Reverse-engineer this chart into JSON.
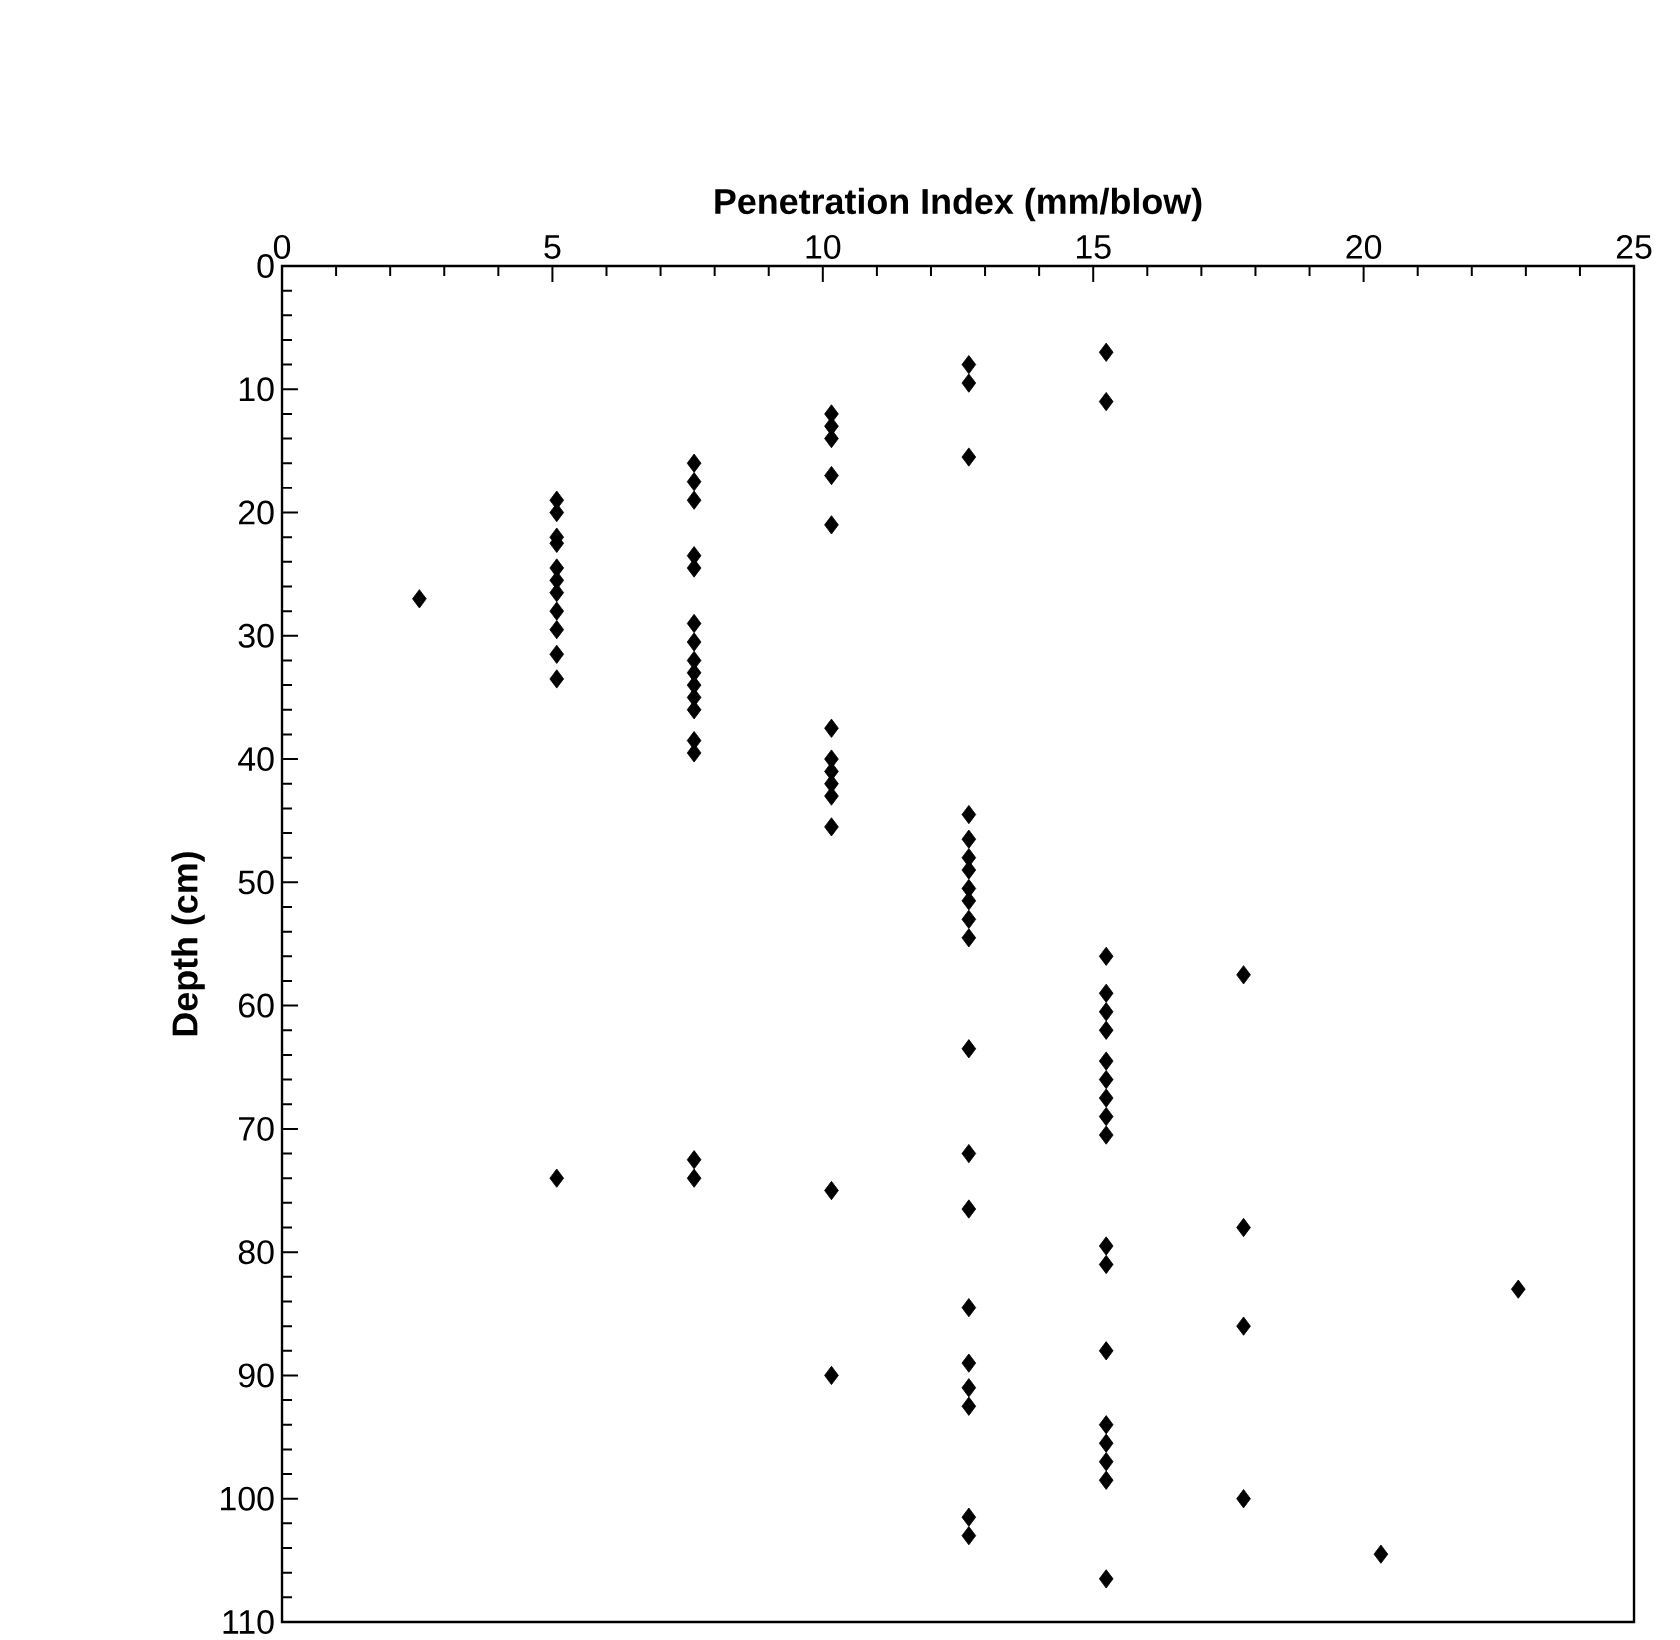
{
  "chart_data": {
    "type": "scatter",
    "xlabel": "Penetration Index (mm/blow)",
    "ylabel": "Depth (cm)",
    "xlim": [
      0,
      25
    ],
    "xticks": [
      0,
      5,
      10,
      15,
      20,
      25
    ],
    "ylim": [
      110,
      0
    ],
    "yticks": [
      0,
      10,
      20,
      30,
      40,
      50,
      60,
      70,
      80,
      90,
      100,
      110
    ],
    "marker": "diamond",
    "grid": false,
    "series": [
      {
        "color": "#000000",
        "x": [
          2.54,
          5.08,
          5.08,
          5.08,
          5.08,
          5.08,
          5.08,
          5.08,
          5.08,
          5.08,
          5.08,
          5.08,
          5.08,
          7.62,
          7.62,
          7.62,
          7.62,
          7.62,
          7.62,
          7.62,
          7.62,
          7.62,
          7.62,
          7.62,
          7.62,
          7.62,
          7.62,
          7.62,
          7.62,
          10.16,
          10.16,
          10.16,
          10.16,
          10.16,
          10.16,
          10.16,
          10.16,
          10.16,
          10.16,
          10.16,
          10.16,
          10.16,
          12.7,
          12.7,
          12.7,
          12.7,
          12.7,
          12.7,
          12.7,
          12.7,
          12.7,
          12.7,
          12.7,
          12.7,
          12.7,
          12.7,
          12.7,
          12.7,
          12.7,
          12.7,
          12.7,
          12.7,
          15.24,
          15.24,
          15.24,
          15.24,
          15.24,
          15.24,
          15.24,
          15.24,
          15.24,
          15.24,
          15.24,
          15.24,
          15.24,
          15.24,
          15.24,
          15.24,
          15.24,
          15.24,
          15.24,
          17.78,
          17.78,
          17.78,
          17.78,
          20.32,
          22.86
        ],
        "values": [
          27,
          19,
          20,
          22,
          22.5,
          24.5,
          25.5,
          26.5,
          28,
          29.5,
          31.5,
          33.5,
          74,
          16,
          17.5,
          19,
          23.5,
          24.5,
          29,
          30.5,
          32,
          33,
          34,
          35,
          36,
          38.5,
          39.5,
          72.5,
          74,
          12,
          13,
          14,
          17,
          21,
          37.5,
          40,
          41,
          42,
          43,
          45.5,
          75,
          90,
          8,
          9.5,
          15.5,
          44.5,
          46.5,
          48,
          49,
          50.5,
          51.5,
          53,
          54.5,
          63.5,
          72,
          76.5,
          84.5,
          89,
          91,
          92.5,
          101.5,
          103,
          7,
          11,
          56,
          59,
          60.5,
          62,
          64.5,
          66,
          67.5,
          69,
          70.5,
          79.5,
          81,
          88,
          94,
          95.5,
          97,
          98.5,
          106.5,
          57.5,
          78,
          86,
          100,
          104.5,
          83
        ]
      }
    ]
  }
}
